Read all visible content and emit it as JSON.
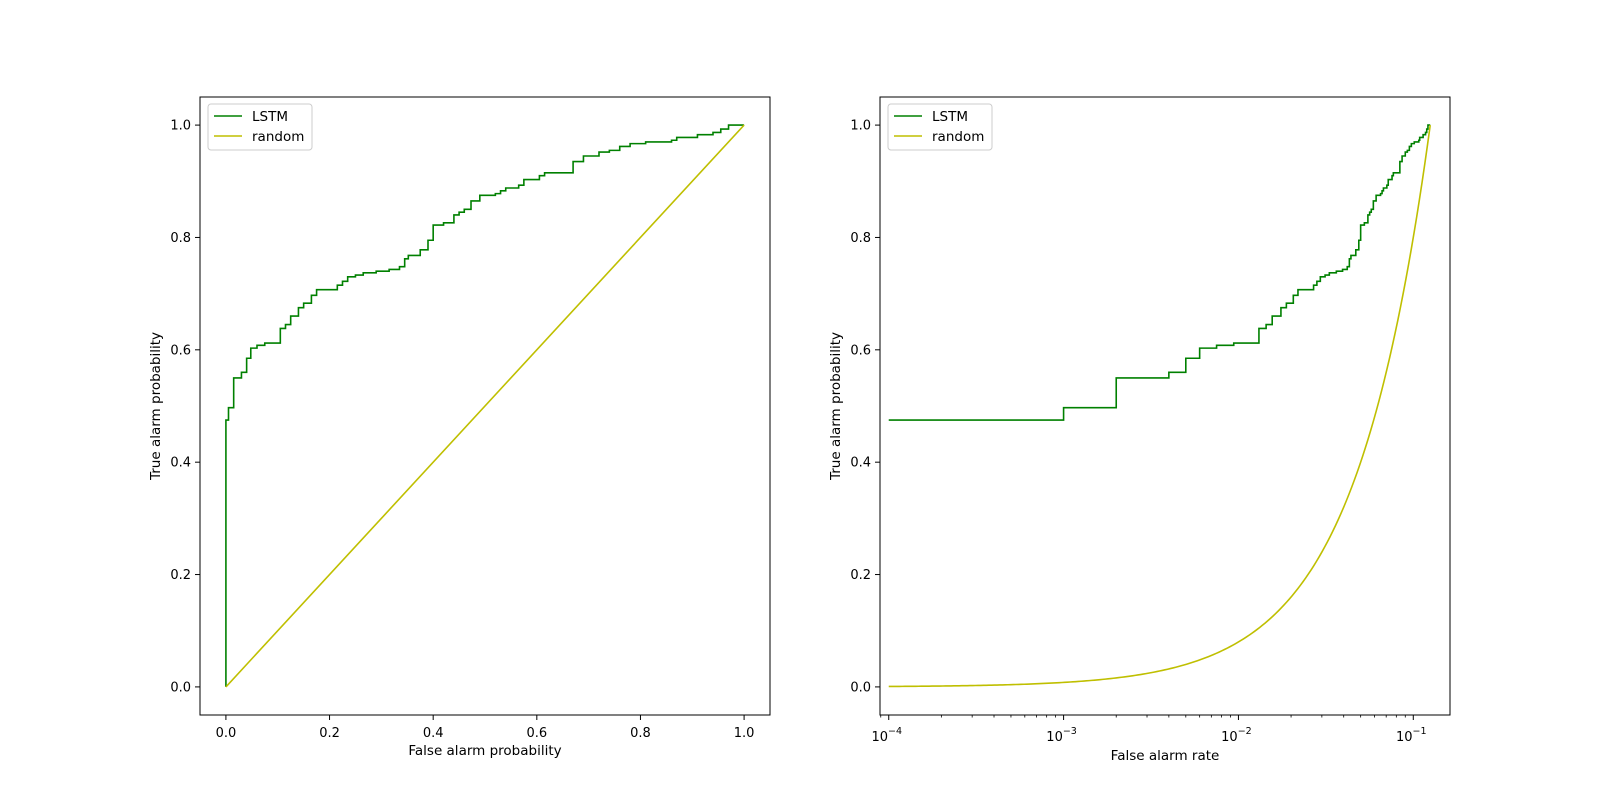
{
  "colors": {
    "lstm": "#008000",
    "random": "#bfbf00"
  },
  "chart_data": [
    {
      "type": "line",
      "xscale": "linear",
      "xlabel": "False alarm probability",
      "ylabel": "True alarm probability",
      "xlim": [
        -0.05,
        1.05
      ],
      "ylim": [
        -0.05,
        1.05
      ],
      "xticks": [
        0.0,
        0.2,
        0.4,
        0.6,
        0.8,
        1.0
      ],
      "xtick_labels": [
        "0.0",
        "0.2",
        "0.4",
        "0.6",
        "0.8",
        "1.0"
      ],
      "yticks": [
        0.0,
        0.2,
        0.4,
        0.6,
        0.8,
        1.0
      ],
      "ytick_labels": [
        "0.0",
        "0.2",
        "0.4",
        "0.6",
        "0.8",
        "1.0"
      ],
      "legend": {
        "location": "upper-left",
        "entries": [
          "LSTM",
          "random"
        ]
      },
      "series": [
        {
          "name": "LSTM",
          "color_key": "lstm",
          "step": true,
          "points": [
            [
              0,
              0
            ],
            [
              0,
              0.475
            ],
            [
              0.005,
              0.475
            ],
            [
              0.005,
              0.497
            ],
            [
              0.015,
              0.497
            ],
            [
              0.015,
              0.55
            ],
            [
              0.03,
              0.55
            ],
            [
              0.03,
              0.56
            ],
            [
              0.04,
              0.56
            ],
            [
              0.04,
              0.585
            ],
            [
              0.048,
              0.585
            ],
            [
              0.048,
              0.603
            ],
            [
              0.06,
              0.603
            ],
            [
              0.06,
              0.608
            ],
            [
              0.075,
              0.608
            ],
            [
              0.075,
              0.612
            ],
            [
              0.105,
              0.612
            ],
            [
              0.105,
              0.638
            ],
            [
              0.115,
              0.638
            ],
            [
              0.115,
              0.645
            ],
            [
              0.125,
              0.645
            ],
            [
              0.125,
              0.66
            ],
            [
              0.14,
              0.66
            ],
            [
              0.14,
              0.675
            ],
            [
              0.15,
              0.675
            ],
            [
              0.15,
              0.683
            ],
            [
              0.165,
              0.683
            ],
            [
              0.165,
              0.697
            ],
            [
              0.175,
              0.697
            ],
            [
              0.175,
              0.707
            ],
            [
              0.215,
              0.707
            ],
            [
              0.215,
              0.715
            ],
            [
              0.225,
              0.715
            ],
            [
              0.225,
              0.722
            ],
            [
              0.235,
              0.722
            ],
            [
              0.235,
              0.73
            ],
            [
              0.25,
              0.73
            ],
            [
              0.25,
              0.733
            ],
            [
              0.265,
              0.733
            ],
            [
              0.265,
              0.737
            ],
            [
              0.29,
              0.737
            ],
            [
              0.29,
              0.74
            ],
            [
              0.315,
              0.74
            ],
            [
              0.315,
              0.743
            ],
            [
              0.335,
              0.743
            ],
            [
              0.335,
              0.748
            ],
            [
              0.345,
              0.748
            ],
            [
              0.345,
              0.762
            ],
            [
              0.352,
              0.762
            ],
            [
              0.352,
              0.768
            ],
            [
              0.375,
              0.768
            ],
            [
              0.375,
              0.778
            ],
            [
              0.39,
              0.778
            ],
            [
              0.39,
              0.795
            ],
            [
              0.4,
              0.795
            ],
            [
              0.4,
              0.822
            ],
            [
              0.42,
              0.822
            ],
            [
              0.42,
              0.826
            ],
            [
              0.44,
              0.826
            ],
            [
              0.44,
              0.84
            ],
            [
              0.45,
              0.84
            ],
            [
              0.45,
              0.845
            ],
            [
              0.46,
              0.845
            ],
            [
              0.46,
              0.85
            ],
            [
              0.473,
              0.85
            ],
            [
              0.473,
              0.865
            ],
            [
              0.49,
              0.865
            ],
            [
              0.49,
              0.875
            ],
            [
              0.52,
              0.875
            ],
            [
              0.52,
              0.878
            ],
            [
              0.53,
              0.878
            ],
            [
              0.53,
              0.883
            ],
            [
              0.54,
              0.883
            ],
            [
              0.54,
              0.888
            ],
            [
              0.565,
              0.888
            ],
            [
              0.565,
              0.893
            ],
            [
              0.575,
              0.893
            ],
            [
              0.575,
              0.903
            ],
            [
              0.605,
              0.903
            ],
            [
              0.605,
              0.91
            ],
            [
              0.615,
              0.91
            ],
            [
              0.615,
              0.915
            ],
            [
              0.67,
              0.915
            ],
            [
              0.67,
              0.935
            ],
            [
              0.69,
              0.935
            ],
            [
              0.69,
              0.945
            ],
            [
              0.72,
              0.945
            ],
            [
              0.72,
              0.952
            ],
            [
              0.74,
              0.952
            ],
            [
              0.74,
              0.955
            ],
            [
              0.76,
              0.955
            ],
            [
              0.76,
              0.962
            ],
            [
              0.78,
              0.962
            ],
            [
              0.78,
              0.967
            ],
            [
              0.81,
              0.967
            ],
            [
              0.81,
              0.97
            ],
            [
              0.86,
              0.97
            ],
            [
              0.86,
              0.973
            ],
            [
              0.87,
              0.973
            ],
            [
              0.87,
              0.978
            ],
            [
              0.91,
              0.978
            ],
            [
              0.91,
              0.983
            ],
            [
              0.94,
              0.983
            ],
            [
              0.94,
              0.987
            ],
            [
              0.955,
              0.987
            ],
            [
              0.955,
              0.993
            ],
            [
              0.97,
              0.993
            ],
            [
              0.97,
              1.0
            ],
            [
              1.0,
              1.0
            ]
          ]
        },
        {
          "name": "random",
          "color_key": "random",
          "step": false,
          "points": [
            [
              0,
              0
            ],
            [
              1,
              1
            ]
          ]
        }
      ]
    },
    {
      "type": "line",
      "xscale": "log",
      "xlabel": "False alarm rate",
      "ylabel": "True alarm probability",
      "xlim_exp": [
        -4.05,
        -0.79
      ],
      "ylim": [
        -0.05,
        1.05
      ],
      "xticks_exp": [
        -4,
        -3,
        -2,
        -1
      ],
      "xtick_bases": [
        "10",
        "10",
        "10",
        "10"
      ],
      "xtick_exponents": [
        "−4",
        "−3",
        "−2",
        "−1"
      ],
      "yticks": [
        0.0,
        0.2,
        0.4,
        0.6,
        0.8,
        1.0
      ],
      "ytick_labels": [
        "0.0",
        "0.2",
        "0.4",
        "0.6",
        "0.8",
        "1.0"
      ],
      "legend": {
        "location": "upper-left",
        "entries": [
          "LSTM",
          "random"
        ]
      },
      "series": [
        {
          "name": "LSTM",
          "color_key": "lstm",
          "step": true,
          "points": [
            [
              0.0001,
              0.475
            ],
            [
              0.001,
              0.475
            ],
            [
              0.001,
              0.497
            ],
            [
              0.002,
              0.497
            ],
            [
              0.002,
              0.55
            ],
            [
              0.004,
              0.55
            ],
            [
              0.004,
              0.56
            ],
            [
              0.005,
              0.56
            ],
            [
              0.005,
              0.585
            ],
            [
              0.006,
              0.585
            ],
            [
              0.006,
              0.603
            ],
            [
              0.0075,
              0.603
            ],
            [
              0.0075,
              0.608
            ],
            [
              0.0094,
              0.608
            ],
            [
              0.0094,
              0.612
            ],
            [
              0.0131,
              0.612
            ],
            [
              0.0131,
              0.638
            ],
            [
              0.0144,
              0.638
            ],
            [
              0.0144,
              0.645
            ],
            [
              0.0156,
              0.645
            ],
            [
              0.0156,
              0.66
            ],
            [
              0.0175,
              0.66
            ],
            [
              0.0175,
              0.675
            ],
            [
              0.0188,
              0.675
            ],
            [
              0.0188,
              0.683
            ],
            [
              0.0206,
              0.683
            ],
            [
              0.0206,
              0.697
            ],
            [
              0.0219,
              0.697
            ],
            [
              0.0219,
              0.707
            ],
            [
              0.0269,
              0.707
            ],
            [
              0.0269,
              0.715
            ],
            [
              0.0281,
              0.715
            ],
            [
              0.0281,
              0.722
            ],
            [
              0.0294,
              0.722
            ],
            [
              0.0294,
              0.73
            ],
            [
              0.0313,
              0.73
            ],
            [
              0.0313,
              0.733
            ],
            [
              0.0331,
              0.733
            ],
            [
              0.0331,
              0.737
            ],
            [
              0.0363,
              0.737
            ],
            [
              0.0363,
              0.74
            ],
            [
              0.0394,
              0.74
            ],
            [
              0.0394,
              0.743
            ],
            [
              0.0419,
              0.743
            ],
            [
              0.0419,
              0.748
            ],
            [
              0.0431,
              0.748
            ],
            [
              0.0431,
              0.762
            ],
            [
              0.044,
              0.762
            ],
            [
              0.044,
              0.768
            ],
            [
              0.0469,
              0.768
            ],
            [
              0.0469,
              0.778
            ],
            [
              0.0488,
              0.778
            ],
            [
              0.0488,
              0.795
            ],
            [
              0.05,
              0.795
            ],
            [
              0.05,
              0.822
            ],
            [
              0.0525,
              0.822
            ],
            [
              0.0525,
              0.826
            ],
            [
              0.055,
              0.826
            ],
            [
              0.055,
              0.84
            ],
            [
              0.0563,
              0.84
            ],
            [
              0.0563,
              0.845
            ],
            [
              0.0575,
              0.845
            ],
            [
              0.0575,
              0.85
            ],
            [
              0.0591,
              0.85
            ],
            [
              0.0591,
              0.865
            ],
            [
              0.0613,
              0.865
            ],
            [
              0.0613,
              0.875
            ],
            [
              0.065,
              0.875
            ],
            [
              0.065,
              0.878
            ],
            [
              0.0663,
              0.878
            ],
            [
              0.0663,
              0.883
            ],
            [
              0.0675,
              0.883
            ],
            [
              0.0675,
              0.888
            ],
            [
              0.0706,
              0.888
            ],
            [
              0.0706,
              0.893
            ],
            [
              0.0719,
              0.893
            ],
            [
              0.0719,
              0.903
            ],
            [
              0.0756,
              0.903
            ],
            [
              0.0756,
              0.91
            ],
            [
              0.0769,
              0.91
            ],
            [
              0.0769,
              0.915
            ],
            [
              0.0838,
              0.915
            ],
            [
              0.0838,
              0.935
            ],
            [
              0.0863,
              0.935
            ],
            [
              0.0863,
              0.945
            ],
            [
              0.09,
              0.945
            ],
            [
              0.09,
              0.952
            ],
            [
              0.0925,
              0.952
            ],
            [
              0.0925,
              0.955
            ],
            [
              0.095,
              0.955
            ],
            [
              0.095,
              0.962
            ],
            [
              0.0975,
              0.962
            ],
            [
              0.0975,
              0.967
            ],
            [
              0.1013,
              0.967
            ],
            [
              0.1013,
              0.97
            ],
            [
              0.1075,
              0.97
            ],
            [
              0.1075,
              0.973
            ],
            [
              0.1088,
              0.973
            ],
            [
              0.1088,
              0.978
            ],
            [
              0.1138,
              0.978
            ],
            [
              0.1138,
              0.983
            ],
            [
              0.1175,
              0.983
            ],
            [
              0.1175,
              0.987
            ],
            [
              0.1194,
              0.987
            ],
            [
              0.1194,
              0.993
            ],
            [
              0.1213,
              0.993
            ],
            [
              0.1213,
              1.0
            ],
            [
              0.125,
              1.0
            ]
          ]
        },
        {
          "name": "random",
          "color_key": "random",
          "step": false,
          "function": "y = x / 0.125",
          "x_range": [
            0.0001,
            0.125
          ]
        }
      ]
    }
  ]
}
